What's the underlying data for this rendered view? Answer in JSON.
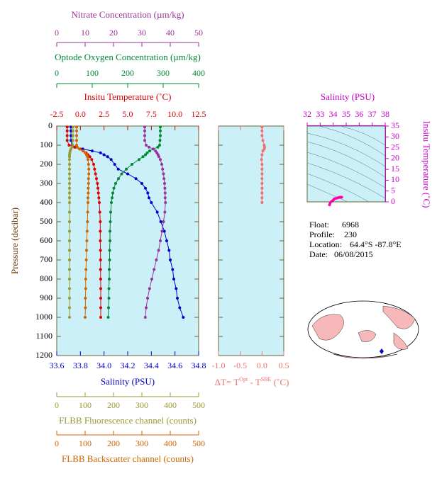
{
  "chart_data": {
    "type": "profile",
    "ylabel": "Pressure (decibar)",
    "ylim": [
      0,
      1200
    ],
    "yticks": [
      0,
      100,
      200,
      300,
      400,
      500,
      600,
      700,
      800,
      900,
      1000,
      1100,
      1200
    ],
    "axes": {
      "nitrate": {
        "label": "Nitrate Concentration (µm/kg)",
        "lim": [
          0,
          50
        ],
        "ticks": [
          0,
          10,
          20,
          30,
          40,
          50
        ],
        "color": "#993399"
      },
      "oxygen": {
        "label": "Optode Oxygen Concentration (µm/kg)",
        "lim": [
          0,
          400
        ],
        "ticks": [
          0,
          100,
          200,
          300,
          400
        ],
        "color": "#008833"
      },
      "temperature": {
        "label": "Insitu Temperature (˚C)",
        "lim": [
          -2.5,
          12.5
        ],
        "ticks": [
          -2.5,
          {
            "value": 0,
            "label": "0.0"
          },
          2.5,
          {
            "value": 5,
            "label": "5.0"
          },
          7.5,
          {
            "value": 10,
            "label": "10.0"
          },
          12.5
        ],
        "color": "#dd0000"
      },
      "salinity": {
        "label": "Salinity (PSU)",
        "lim": [
          33.6,
          34.8
        ],
        "ticks": [
          33.6,
          33.8,
          {
            "value": 34,
            "label": "34.0"
          },
          34.2,
          34.4,
          34.6,
          34.8
        ],
        "color": "#0000cc"
      },
      "fluorescence": {
        "label": "FLBB Fluorescence channel (counts)",
        "lim": [
          0,
          500
        ],
        "ticks": [
          0,
          100,
          200,
          300,
          400,
          500
        ],
        "color": "#999933"
      },
      "backscatter": {
        "label": "FLBB Backscatter channel (counts)",
        "lim": [
          0,
          500
        ],
        "ticks": [
          0,
          100,
          200,
          300,
          400,
          500
        ],
        "color": "#cc6600"
      },
      "dt": {
        "label": [
          "ΔT= T",
          "Opt",
          " - T",
          "SBE",
          " (˚C)"
        ],
        "lim": [
          -1,
          0.5
        ],
        "ticks": [
          {
            "value": -1,
            "label": "-1.0"
          },
          -0.5,
          {
            "value": 0,
            "label": "0.0"
          },
          0.5
        ],
        "color": "#f07070"
      }
    },
    "pressure": [
      5,
      25,
      50,
      75,
      100,
      110,
      120,
      130,
      140,
      150,
      160,
      175,
      200,
      225,
      250,
      275,
      300,
      325,
      350,
      375,
      400,
      450,
      500,
      550,
      600,
      650,
      700,
      750,
      800,
      850,
      900,
      950,
      1000
    ],
    "series": [
      {
        "axis": "salinity",
        "color": "#0000cc",
        "values": [
          33.72,
          33.72,
          33.72,
          33.72,
          33.73,
          33.76,
          33.82,
          33.9,
          33.97,
          34.0,
          34.03,
          34.06,
          34.09,
          34.12,
          34.2,
          34.27,
          34.32,
          34.35,
          34.37,
          34.38,
          34.4,
          34.45,
          34.48,
          34.51,
          34.53,
          34.55,
          34.56,
          34.58,
          34.59,
          34.61,
          34.62,
          34.64,
          34.67
        ]
      },
      {
        "axis": "temperature",
        "color": "#dd0000",
        "values": [
          -1.4,
          -1.4,
          -1.4,
          -1.4,
          -1.2,
          -0.6,
          0.0,
          0.3,
          0.6,
          0.8,
          1.0,
          1.2,
          1.4,
          1.5,
          1.6,
          1.7,
          1.8,
          1.85,
          1.9,
          1.95,
          2.0,
          2.05,
          2.1,
          2.1,
          2.1,
          2.12,
          2.13,
          2.13,
          2.14,
          2.15,
          2.15,
          2.15,
          2.15
        ]
      },
      {
        "axis": "oxygen",
        "color": "#008833",
        "values": [
          292,
          292,
          292,
          291,
          290,
          285,
          272,
          262,
          255,
          250,
          243,
          232,
          212,
          196,
          183,
          174,
          166,
          161,
          158,
          156,
          154,
          152,
          151,
          150,
          150,
          149,
          149,
          148,
          148,
          147,
          147,
          146,
          145
        ]
      },
      {
        "axis": "nitrate",
        "color": "#993399",
        "values": [
          31,
          31,
          31,
          31,
          31.5,
          32.5,
          34,
          34.8,
          35.3,
          35.7,
          36,
          36.5,
          37,
          37.3,
          37.6,
          37.8,
          38,
          38.1,
          38.2,
          38.2,
          38.3,
          38.1,
          37.6,
          37.1,
          36.5,
          35.9,
          35.1,
          34.3,
          33.5,
          32.7,
          32,
          31.5,
          31.2
        ]
      },
      {
        "axis": "fluorescence",
        "color": "#999933",
        "values": [
          57,
          57,
          57,
          57,
          56,
          54,
          50,
          47,
          46,
          45,
          45,
          45,
          45,
          45,
          45,
          45,
          45,
          45,
          45,
          45,
          45,
          45,
          45,
          45,
          45,
          45,
          45,
          45,
          45,
          45,
          45,
          45,
          45
        ]
      },
      {
        "axis": "backscatter",
        "color": "#cc6600",
        "values": [
          70,
          70,
          70,
          70,
          70,
          72,
          80,
          92,
          100,
          105,
          108,
          110,
          112,
          113,
          113,
          112,
          112,
          111,
          111,
          110,
          110,
          109,
          108,
          107,
          106,
          105,
          104,
          103,
          102,
          102,
          101,
          101,
          100
        ]
      }
    ],
    "dt": {
      "pressure": [
        5,
        25,
        50,
        75,
        100,
        110,
        120,
        130,
        150,
        175,
        200,
        225,
        250,
        275,
        300,
        325,
        350,
        375,
        400
      ],
      "values": [
        0,
        0,
        0,
        0.02,
        0.05,
        0.06,
        0.05,
        0.02,
        0,
        -0.01,
        0,
        0,
        0,
        0,
        0,
        0,
        0,
        0,
        0
      ]
    },
    "ts": {
      "title": "Salinity (PSU)",
      "xlim": [
        32,
        38
      ],
      "xticks": [
        32,
        33,
        34,
        35,
        36,
        37,
        38
      ],
      "ylabel": "Insitu Temperature (˚C)",
      "ylim": [
        0,
        35
      ],
      "yticks": [
        0,
        5,
        10,
        15,
        20,
        25,
        30,
        35
      ],
      "color": "#cc00cc"
    },
    "info": {
      "float_label": "Float:",
      "float": "6968",
      "profile_label": "Profile:",
      "profile": "230",
      "location_label": "Location:",
      "location": "64.4°S  -87.8°E",
      "date_label": "Date:",
      "date": "06/08/2015"
    }
  }
}
